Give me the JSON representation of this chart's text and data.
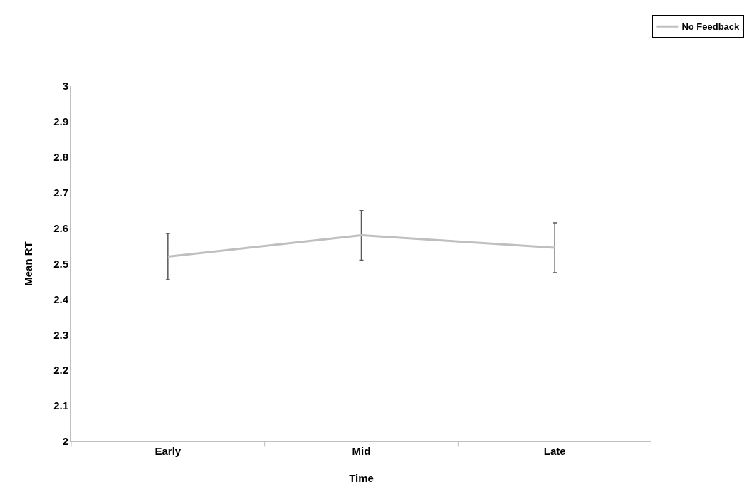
{
  "chart_data": {
    "type": "line",
    "xlabel": "Time",
    "ylabel": "Mean RT",
    "categories": [
      "Early",
      "Mid",
      "Late"
    ],
    "series": [
      {
        "name": "No Feedback",
        "color": "#bfbfbf",
        "values": [
          2.52,
          2.58,
          2.545
        ],
        "errors": [
          0.065,
          0.07,
          0.07
        ]
      }
    ],
    "ylim": [
      2,
      3
    ],
    "yticks": [
      2,
      2.1,
      2.2,
      2.3,
      2.4,
      2.5,
      2.6,
      2.7,
      2.8,
      2.9,
      3
    ],
    "grid": false,
    "legend": "top right",
    "marker": "none",
    "line_style": "solid"
  }
}
